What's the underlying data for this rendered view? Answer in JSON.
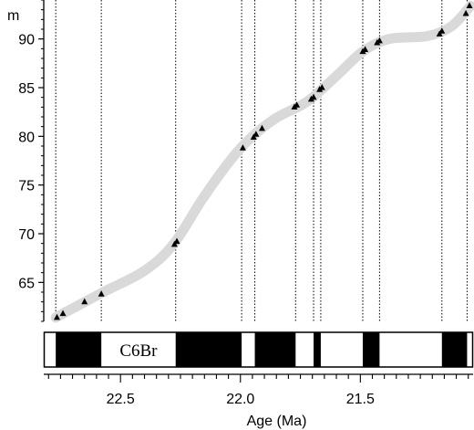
{
  "chart_data": {
    "type": "scatter",
    "title": "",
    "xlabel": "Age (Ma)",
    "ylabel": "m",
    "xlim": [
      22.82,
      21.03
    ],
    "ylim": [
      61,
      94
    ],
    "x_reversed": true,
    "xticks": [
      22.5,
      22.0,
      21.5
    ],
    "xtick_labels": [
      "22.5",
      "22.0",
      "21.5"
    ],
    "xminor_step": 0.05,
    "yticks": [
      65,
      70,
      75,
      80,
      85,
      90
    ],
    "ytick_labels": [
      "65",
      "70",
      "75",
      "80",
      "85",
      "90"
    ],
    "grid": false,
    "legend": "none",
    "colors": {
      "points": "#000000",
      "trend": "#d9d9d9",
      "reference_lines": "#000000"
    },
    "points": [
      {
        "x": 22.765,
        "y": 61.4
      },
      {
        "x": 22.74,
        "y": 61.8
      },
      {
        "x": 22.65,
        "y": 63.0
      },
      {
        "x": 22.58,
        "y": 63.8
      },
      {
        "x": 22.275,
        "y": 68.9
      },
      {
        "x": 22.265,
        "y": 69.2
      },
      {
        "x": 21.99,
        "y": 78.8
      },
      {
        "x": 21.945,
        "y": 79.9
      },
      {
        "x": 21.935,
        "y": 80.2
      },
      {
        "x": 21.91,
        "y": 80.8
      },
      {
        "x": 21.775,
        "y": 83.0
      },
      {
        "x": 21.765,
        "y": 83.2
      },
      {
        "x": 21.705,
        "y": 83.8
      },
      {
        "x": 21.695,
        "y": 84.0
      },
      {
        "x": 21.67,
        "y": 84.8
      },
      {
        "x": 21.66,
        "y": 85.0
      },
      {
        "x": 21.49,
        "y": 88.7
      },
      {
        "x": 21.48,
        "y": 88.9
      },
      {
        "x": 21.43,
        "y": 89.6
      },
      {
        "x": 21.42,
        "y": 89.8
      },
      {
        "x": 21.17,
        "y": 90.5
      },
      {
        "x": 21.16,
        "y": 90.8
      },
      {
        "x": 21.06,
        "y": 92.6
      },
      {
        "x": 21.045,
        "y": 93.4
      }
    ],
    "trend": [
      {
        "x": 22.77,
        "y": 61.4
      },
      {
        "x": 22.58,
        "y": 63.9
      },
      {
        "x": 22.4,
        "y": 66.2
      },
      {
        "x": 22.28,
        "y": 68.9
      },
      {
        "x": 22.16,
        "y": 73.5
      },
      {
        "x": 22.04,
        "y": 77.6
      },
      {
        "x": 21.95,
        "y": 80.0
      },
      {
        "x": 21.85,
        "y": 81.9
      },
      {
        "x": 21.72,
        "y": 83.6
      },
      {
        "x": 21.6,
        "y": 86.2
      },
      {
        "x": 21.49,
        "y": 88.7
      },
      {
        "x": 21.38,
        "y": 90.0
      },
      {
        "x": 21.22,
        "y": 90.3
      },
      {
        "x": 21.12,
        "y": 91.3
      },
      {
        "x": 21.04,
        "y": 93.4
      }
    ],
    "reference_lines_x": [
      22.77,
      22.58,
      22.27,
      21.995,
      21.94,
      21.77,
      21.695,
      21.665,
      21.49,
      21.42,
      21.16,
      21.055
    ],
    "polarity_normal_segments": [
      [
        22.77,
        22.58
      ],
      [
        22.27,
        21.995
      ],
      [
        21.94,
        21.77
      ],
      [
        21.695,
        21.665
      ],
      [
        21.49,
        21.42
      ],
      [
        21.16,
        21.055
      ]
    ],
    "chron_label": "C6Br"
  }
}
